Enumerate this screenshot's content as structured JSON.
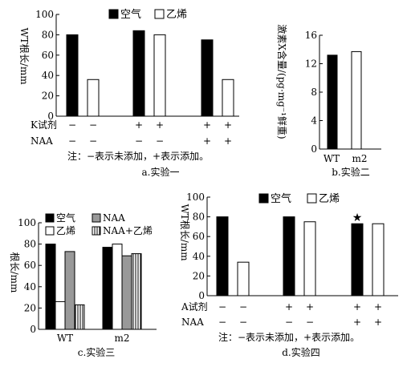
{
  "chart_data": [
    {
      "id": "a",
      "type": "bar",
      "caption": "a.实验一",
      "ylabel": "WT根长/mm",
      "ylim": [
        0,
        100
      ],
      "yticks": [
        0,
        20,
        40,
        60,
        80,
        100
      ],
      "legend": [
        {
          "name": "空气",
          "fill": "#000000"
        },
        {
          "name": "乙烯",
          "fill": "#ffffff"
        }
      ],
      "groups": [
        {
          "values": [
            80,
            36
          ]
        },
        {
          "values": [
            84,
            80
          ]
        },
        {
          "values": [
            75,
            36
          ]
        }
      ],
      "treatments": [
        {
          "label": "K试剂",
          "marks": [
            "−",
            "−",
            "+",
            "+",
            "+",
            "+"
          ]
        },
        {
          "label": "NAA",
          "marks": [
            "−",
            "−",
            "−",
            "−",
            "+",
            "+"
          ]
        }
      ],
      "note": "注：−表示未添加，+表示添加。"
    },
    {
      "id": "b",
      "type": "bar",
      "caption": "b.实验二",
      "ylabel": "激素X含量/(pg·mg⁻¹鲜重)",
      "ylim": [
        0,
        16
      ],
      "yticks": [
        0,
        4,
        8,
        12,
        16
      ],
      "categories": [
        "WT",
        "m2"
      ],
      "values": [
        13.2,
        13.7
      ],
      "fills": [
        "#000000",
        "#ffffff"
      ]
    },
    {
      "id": "c",
      "type": "bar",
      "caption": "c.实验三",
      "ylabel": "根长/mm",
      "ylim": [
        0,
        100
      ],
      "yticks": [
        0,
        20,
        40,
        60,
        80,
        100
      ],
      "legend": [
        {
          "name": "空气",
          "fill": "#000000"
        },
        {
          "name": "NAA",
          "fill": "#999999"
        },
        {
          "name": "乙烯",
          "fill": "#ffffff"
        },
        {
          "name": "NAA+乙烯",
          "fill": "stripes"
        }
      ],
      "categories": [
        "WT",
        "m2"
      ],
      "series": [
        {
          "name": "空气",
          "values": [
            80,
            77
          ]
        },
        {
          "name": "乙烯",
          "values": [
            26,
            80
          ]
        },
        {
          "name": "NAA",
          "values": [
            73,
            69
          ]
        },
        {
          "name": "NAA+乙烯",
          "values": [
            23,
            71
          ]
        }
      ]
    },
    {
      "id": "d",
      "type": "bar",
      "caption": "d.实验四",
      "ylabel": "WT根长/mm",
      "ylim": [
        0,
        100
      ],
      "yticks": [
        0,
        20,
        40,
        60,
        80,
        100
      ],
      "legend": [
        {
          "name": "空气",
          "fill": "#000000"
        },
        {
          "name": "乙烯",
          "fill": "#ffffff"
        }
      ],
      "groups": [
        {
          "values": [
            80,
            34
          ]
        },
        {
          "values": [
            80,
            75
          ]
        },
        {
          "values": [
            73,
            73
          ]
        }
      ],
      "star_marker": "★",
      "treatments": [
        {
          "label": "A试剂",
          "marks": [
            "−",
            "−",
            "+",
            "+",
            "+",
            "+"
          ]
        },
        {
          "label": "NAA",
          "marks": [
            "−",
            "−",
            "−",
            "−",
            "+",
            "+"
          ]
        }
      ],
      "note": "注：−表示未添加，+表示添加。"
    }
  ]
}
